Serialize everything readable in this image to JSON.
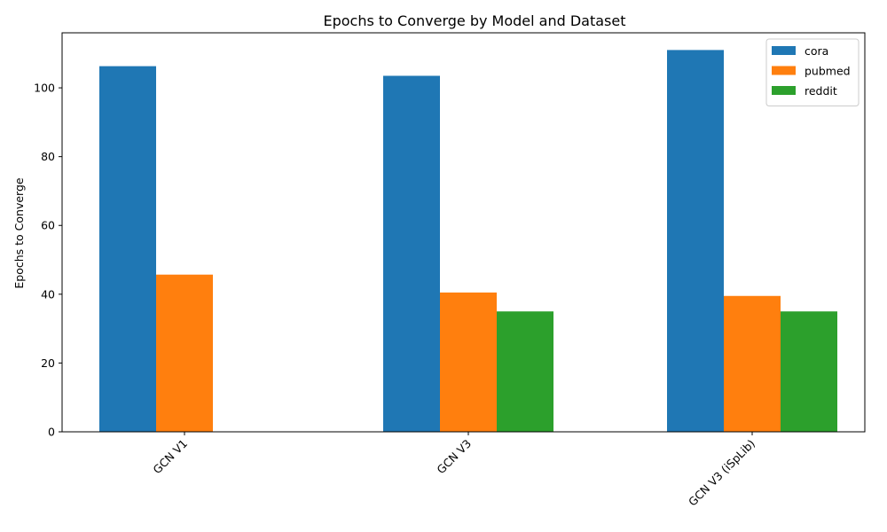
{
  "chart_data": {
    "type": "bar",
    "title": "Epochs to Converge by Model and Dataset",
    "xlabel": "",
    "ylabel": "Epochs to Converge",
    "categories": [
      "GCN V1",
      "GCN V3",
      "GCN V3 (iSpLib)"
    ],
    "series": [
      {
        "name": "cora",
        "color": "#1f77b4",
        "values": [
          106.3,
          103.5,
          111.0
        ]
      },
      {
        "name": "pubmed",
        "color": "#ff7f0e",
        "values": [
          45.7,
          40.5,
          39.5
        ]
      },
      {
        "name": "reddit",
        "color": "#2ca02c",
        "values": [
          null,
          35.0,
          35.0
        ]
      }
    ],
    "ylim": [
      0,
      116
    ],
    "yticks": [
      0,
      20,
      40,
      60,
      80,
      100
    ],
    "grid": false,
    "legend_position": "top-right"
  }
}
